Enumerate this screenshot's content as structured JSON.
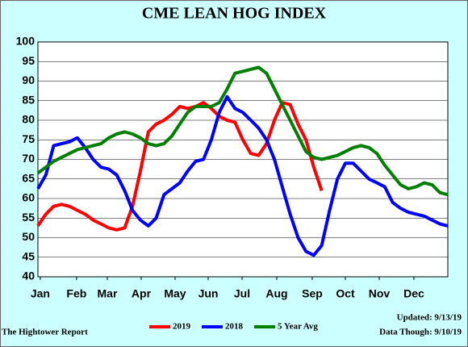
{
  "chart_data": {
    "type": "line",
    "title": "CME LEAN HOG INDEX",
    "source": "The Hightower Report",
    "updated": "Updated: 9/13/19",
    "data_through": "Data Though: 9/10/19",
    "x": [
      0,
      1,
      2,
      3,
      4,
      5,
      6,
      7,
      8,
      9,
      10,
      11,
      12,
      13,
      14,
      15,
      16,
      17,
      18,
      19,
      20,
      21,
      22,
      23,
      24,
      25,
      26,
      27,
      28,
      29,
      30,
      31,
      32,
      33,
      34,
      35,
      36,
      37,
      38,
      39,
      40,
      41,
      42,
      43,
      44,
      45,
      46,
      47,
      48,
      49,
      50,
      51,
      52
    ],
    "xlim": [
      0,
      52
    ],
    "xticks": [
      {
        "value": 0.3,
        "label": "Jan"
      },
      {
        "value": 4.9,
        "label": "Feb"
      },
      {
        "value": 8.8,
        "label": "Mar"
      },
      {
        "value": 13.1,
        "label": "Apr"
      },
      {
        "value": 17.4,
        "label": "May"
      },
      {
        "value": 21.6,
        "label": "Jun"
      },
      {
        "value": 25.9,
        "label": "Jul"
      },
      {
        "value": 30.3,
        "label": "Aug"
      },
      {
        "value": 34.8,
        "label": "Sep"
      },
      {
        "value": 39,
        "label": "Oct"
      },
      {
        "value": 43.3,
        "label": "Nov"
      },
      {
        "value": 47.7,
        "label": "Dec"
      }
    ],
    "ylim": [
      40,
      100
    ],
    "yticks": [
      40,
      45,
      50,
      55,
      60,
      65,
      70,
      75,
      80,
      85,
      90,
      95,
      100
    ],
    "grid": true,
    "legend": "bottom",
    "series": [
      {
        "name": "2019",
        "color": "#ff0000",
        "values": [
          53,
          56,
          58,
          58.5,
          58,
          57,
          56,
          54.5,
          53.5,
          52.5,
          52,
          52.5,
          58,
          67,
          77,
          79,
          80,
          81.5,
          83.5,
          83,
          83.5,
          84.5,
          83,
          81,
          80,
          79.5,
          75,
          71.5,
          71,
          74,
          80,
          84.5,
          84,
          79,
          75,
          68,
          62,
          null,
          null,
          null,
          null,
          null,
          null,
          null,
          null,
          null,
          null,
          null,
          null,
          null,
          null,
          null,
          null
        ]
      },
      {
        "name": "2018",
        "color": "#0000ff",
        "values": [
          62.5,
          66,
          73.5,
          74,
          74.5,
          75.5,
          73,
          70,
          68,
          67.5,
          66,
          62,
          57,
          54.5,
          53,
          55,
          61,
          62.5,
          64,
          67,
          69.5,
          70,
          75,
          82,
          86,
          83,
          82,
          80,
          78,
          75,
          70,
          63,
          56,
          50,
          46.5,
          45.5,
          48,
          57,
          65,
          69,
          69,
          67,
          65,
          64,
          63,
          59,
          57.5,
          56.5,
          56,
          55.5,
          54.5,
          53.5,
          53
        ]
      },
      {
        "name": "5 Year Avg",
        "color": "#008000",
        "values": [
          66.5,
          68,
          69.5,
          70.5,
          71.5,
          72.5,
          73,
          73.5,
          74,
          75.5,
          76.5,
          77,
          76.5,
          75.5,
          74,
          73.5,
          74,
          76,
          79,
          82,
          83.5,
          83.5,
          83.5,
          84.5,
          88,
          92,
          92.5,
          93,
          93.5,
          92,
          88,
          84,
          80,
          76,
          72,
          70.5,
          70,
          70.5,
          71,
          72,
          73,
          73.5,
          73,
          71.5,
          68.5,
          66,
          63.5,
          62.5,
          63,
          64,
          63.5,
          61.5,
          61
        ]
      }
    ]
  }
}
